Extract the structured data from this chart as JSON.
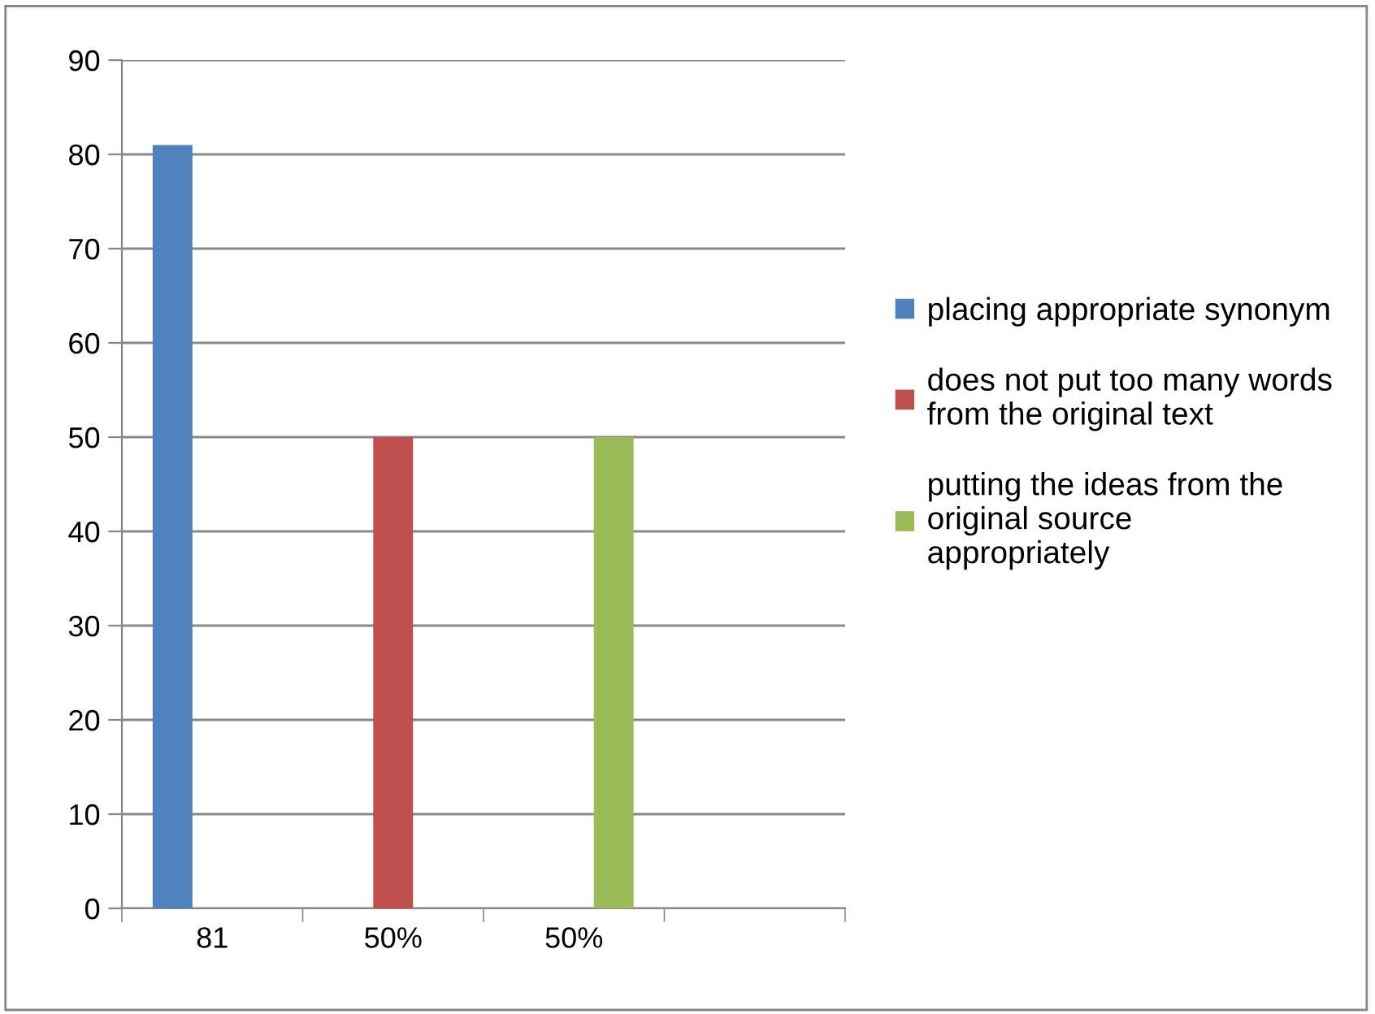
{
  "chart_data": {
    "type": "bar",
    "categories": [
      "81",
      "50%",
      "50%",
      null
    ],
    "series": [
      {
        "name": "placing appropriate synonym",
        "color": "#4f81bd",
        "values": [
          81,
          null,
          null,
          null
        ]
      },
      {
        "name": "does not put too many words from the original text",
        "color": "#c0504d",
        "values": [
          null,
          50,
          null,
          null
        ]
      },
      {
        "name": "putting the ideas from the original source appropriately",
        "color": "#9bbb59",
        "values": [
          null,
          null,
          50,
          null
        ]
      }
    ],
    "ylim": [
      0,
      90
    ],
    "yticks": [
      0,
      10,
      20,
      30,
      40,
      50,
      60,
      70,
      80,
      90
    ],
    "grid": "y",
    "legend": "right"
  }
}
